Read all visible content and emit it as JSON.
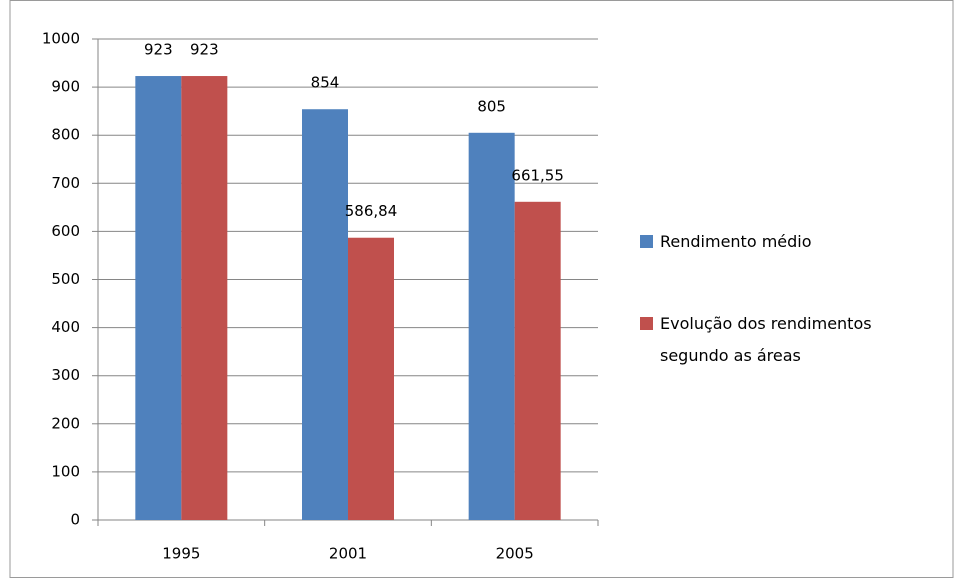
{
  "chart_data": {
    "type": "bar",
    "categories": [
      "1995",
      "2001",
      "2005"
    ],
    "series": [
      {
        "name": "Rendimento médio",
        "color": "#4f81bd",
        "values": [
          923,
          854,
          805
        ]
      },
      {
        "name": "Evolução dos rendimentos segundo as áreas",
        "color": "#c0504d",
        "values": [
          923,
          586.84,
          661.55
        ],
        "value_labels": [
          "923",
          "586,84",
          "661,55"
        ]
      }
    ],
    "ylim": [
      0,
      1000
    ],
    "yticks": [
      0,
      100,
      200,
      300,
      400,
      500,
      600,
      700,
      800,
      900,
      1000
    ],
    "grid": true,
    "legend": "right"
  }
}
